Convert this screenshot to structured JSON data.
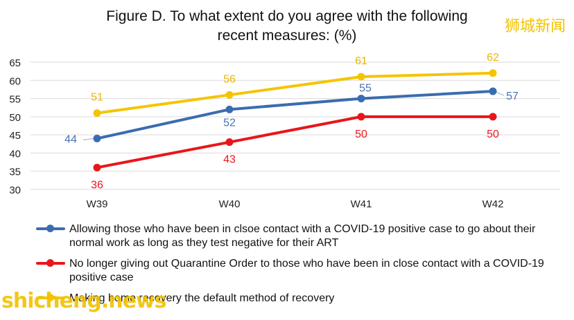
{
  "title_line1": "Figure D. To what extent do you agree with the following",
  "title_line2": "recent measures: (%)",
  "watermark_top": "狮城新闻",
  "watermark_bottom": "shicheng.news",
  "chart_data": {
    "type": "line",
    "title": "Figure D. To what extent do you agree with the following recent measures: (%)",
    "categories": [
      "W39",
      "W40",
      "W41",
      "W42"
    ],
    "ylim": [
      30,
      65
    ],
    "yticks": [
      30,
      35,
      40,
      45,
      50,
      55,
      60,
      65
    ],
    "grid": true,
    "legend_position": "bottom",
    "series": [
      {
        "name": "Allowing those who have been in clsoe contact with a COVID-19 positive case to go about their normal work as long as they test negative for their ART",
        "values": [
          44,
          52,
          55,
          57
        ],
        "labels": [
          "44",
          "52",
          "55",
          "57"
        ],
        "color": "#3a6cb0",
        "label_color": "#4a72b8"
      },
      {
        "name": "No longer giving out Quarantine Order to those who have been in close contact with a COVID-19 positive case",
        "values": [
          36,
          43,
          50,
          50
        ],
        "labels": [
          "36",
          "43",
          "50",
          "50"
        ],
        "color": "#e8161b",
        "label_color": "#e8161b"
      },
      {
        "name": "Making home recovery the default method of recovery",
        "values": [
          51,
          56,
          61,
          62
        ],
        "labels": [
          "51",
          "56",
          "61",
          "62"
        ],
        "color": "#f5c400",
        "label_color": "#e8b800"
      }
    ]
  }
}
